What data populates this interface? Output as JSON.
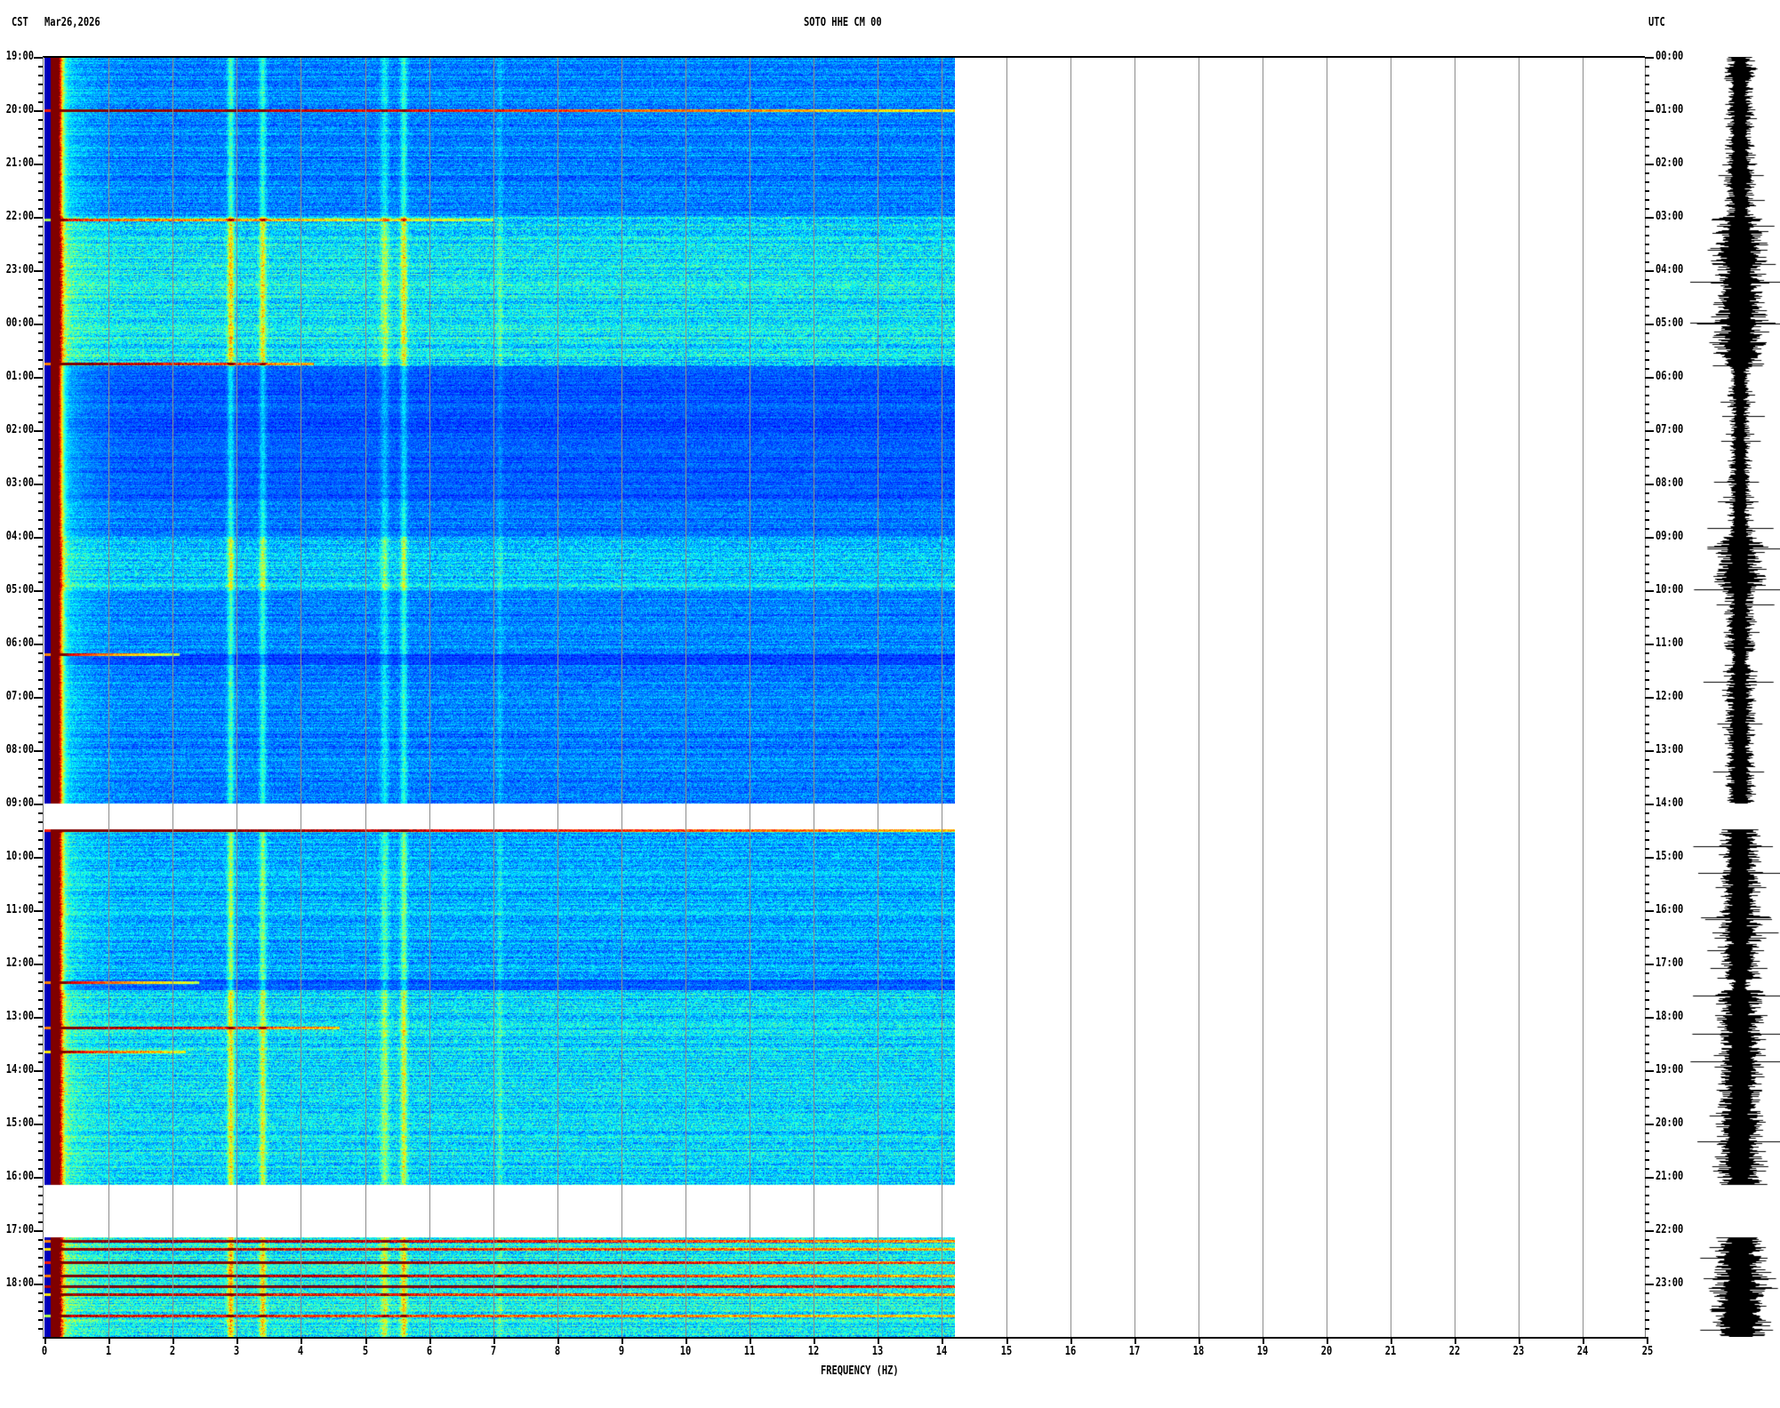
{
  "header": {
    "left_timezone": "CST",
    "date": "Mar26,2026",
    "station": "SOTO HHE CM 00",
    "right_timezone": "UTC"
  },
  "chart_data": {
    "type": "heatmap",
    "title": "SOTO HHE CM 00",
    "xlabel": "FREQUENCY (HZ)",
    "ylabel_left": "CST",
    "ylabel_right": "UTC",
    "xlim": [
      0,
      25
    ],
    "data_xlim": [
      0,
      14.25
    ],
    "ylim_hours": [
      0,
      24
    ],
    "grid": true,
    "x_ticks": [
      "0",
      "1",
      "2",
      "3",
      "4",
      "5",
      "6",
      "7",
      "8",
      "9",
      "10",
      "11",
      "12",
      "13",
      "14",
      "15",
      "16",
      "17",
      "18",
      "19",
      "20",
      "21",
      "22",
      "23",
      "24",
      "25"
    ],
    "left_ticks": [
      "19:00",
      "20:00",
      "21:00",
      "22:00",
      "23:00",
      "00:00",
      "01:00",
      "02:00",
      "03:00",
      "04:00",
      "05:00",
      "06:00",
      "07:00",
      "08:00",
      "09:00",
      "10:00",
      "11:00",
      "12:00",
      "13:00",
      "14:00",
      "15:00",
      "16:00",
      "17:00",
      "18:00"
    ],
    "right_ticks": [
      "00:00",
      "01:00",
      "02:00",
      "03:00",
      "04:00",
      "05:00",
      "06:00",
      "07:00",
      "08:00",
      "09:00",
      "10:00",
      "11:00",
      "12:00",
      "13:00",
      "14:00",
      "15:00",
      "16:00",
      "17:00",
      "18:00",
      "19:00",
      "20:00",
      "21:00",
      "22:00",
      "23:00"
    ],
    "data_gaps_utc_hours": [
      [
        13.92,
        14.47
      ],
      [
        21.15,
        22.12
      ]
    ],
    "spectral_peaks_hz": [
      0.15,
      2.9,
      3.4,
      5.3,
      5.6,
      7.1
    ],
    "colormap": [
      "#00008f",
      "#0000ff",
      "#00ffff",
      "#ffff00",
      "#ff0000",
      "#800000"
    ],
    "activity_utc": [
      {
        "from": 0,
        "to": 3,
        "level": 0.3
      },
      {
        "from": 3,
        "to": 5.8,
        "level": 0.65
      },
      {
        "from": 5.8,
        "to": 8.3,
        "level": 0.15
      },
      {
        "from": 8.3,
        "to": 9.0,
        "level": 0.25
      },
      {
        "from": 9.0,
        "to": 10.0,
        "level": 0.55
      },
      {
        "from": 10.0,
        "to": 11.2,
        "level": 0.3
      },
      {
        "from": 11.2,
        "to": 11.4,
        "level": 0.1
      },
      {
        "from": 11.4,
        "to": 14.0,
        "level": 0.3
      },
      {
        "from": 14.47,
        "to": 17.3,
        "level": 0.45
      },
      {
        "from": 17.3,
        "to": 17.5,
        "level": 0.2
      },
      {
        "from": 17.5,
        "to": 21.15,
        "level": 0.6
      },
      {
        "from": 22.12,
        "to": 24,
        "level": 0.7
      }
    ],
    "events_utc": [
      {
        "t": 1.0,
        "fmax": 14.25,
        "s": 0.8
      },
      {
        "t": 3.05,
        "fmax": 7.0,
        "s": 0.5
      },
      {
        "t": 5.75,
        "fmax": 4.2,
        "s": 0.7
      },
      {
        "t": 11.2,
        "fmax": 2.1,
        "s": 0.7
      },
      {
        "t": 14.5,
        "fmax": 14.25,
        "s": 0.8
      },
      {
        "t": 17.35,
        "fmax": 2.4,
        "s": 0.7
      },
      {
        "t": 18.2,
        "fmax": 4.6,
        "s": 0.7
      },
      {
        "t": 18.65,
        "fmax": 2.2,
        "s": 0.6
      },
      {
        "t": 22.2,
        "fmax": 14.25,
        "s": 0.7
      },
      {
        "t": 22.35,
        "fmax": 14.25,
        "s": 0.6
      },
      {
        "t": 22.6,
        "fmax": 14.25,
        "s": 0.8
      },
      {
        "t": 22.85,
        "fmax": 14.25,
        "s": 0.7
      },
      {
        "t": 23.05,
        "fmax": 14.25,
        "s": 0.9
      },
      {
        "t": 23.2,
        "fmax": 14.25,
        "s": 0.6
      },
      {
        "t": 23.6,
        "fmax": 14.25,
        "s": 0.5
      }
    ]
  }
}
